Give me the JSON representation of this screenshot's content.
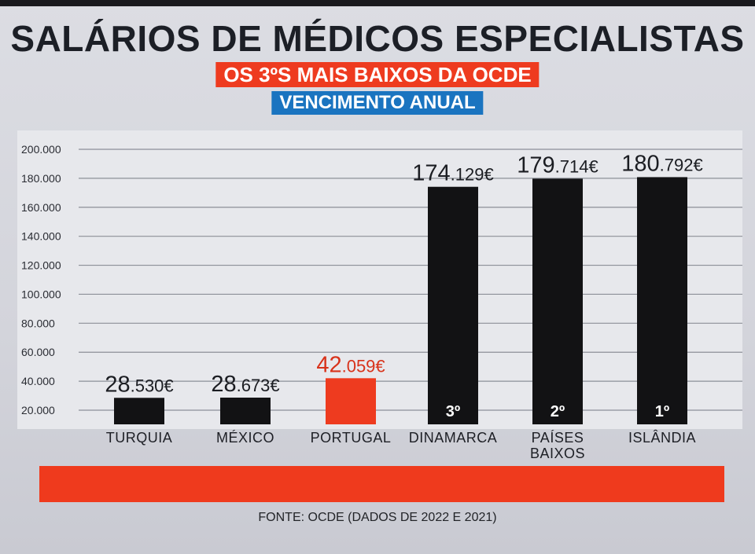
{
  "title": "SALÁRIOS DE MÉDICOS ESPECIALISTAS",
  "subtitle_red": "OS 3ºS MAIS BAIXOS DA OCDE",
  "subtitle_blue": "VENCIMENTO ANUAL",
  "source": "FONTE: OCDE (DADOS DE 2022 E 2021)",
  "colors": {
    "bar": "#121214",
    "highlight": "#ee3b1f",
    "banner_red": "#ee3b1f",
    "banner_blue": "#1a74c0"
  },
  "chart_data": {
    "type": "bar",
    "categories": [
      "TURQUIA",
      "MÉXICO",
      "PORTUGAL",
      "DINAMARCA",
      "PAÍSES BAIXOS",
      "ISLÂNDIA"
    ],
    "values": [
      28530,
      28673,
      42059,
      174129,
      179714,
      180792
    ],
    "value_labels": [
      {
        "main": "28",
        "decimals": ".530€"
      },
      {
        "main": "28",
        "decimals": ".673€"
      },
      {
        "main": "42",
        "decimals": ".059€"
      },
      {
        "main": "174",
        "decimals": ".129€"
      },
      {
        "main": "179",
        "decimals": ".714€"
      },
      {
        "main": "180",
        "decimals": ".792€"
      }
    ],
    "rank_labels": [
      "",
      "",
      "",
      "3º",
      "2º",
      "1º"
    ],
    "highlight_index": 2,
    "yticks": [
      "20.000",
      "40.000",
      "60.000",
      "80.000",
      "100.000",
      "120.000",
      "140.000",
      "160.000",
      "180.000",
      "200.000"
    ],
    "ytick_values": [
      20000,
      40000,
      60000,
      80000,
      100000,
      120000,
      140000,
      160000,
      180000,
      200000
    ],
    "ylim": [
      20000,
      200000
    ],
    "grid": true
  }
}
